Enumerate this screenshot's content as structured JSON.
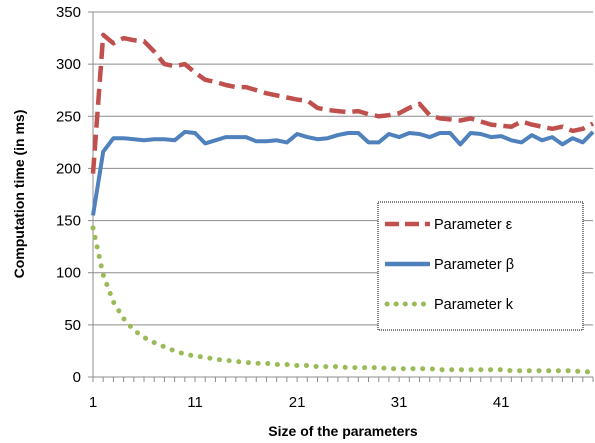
{
  "chart_data": {
    "type": "line",
    "xlabel": "Size of the parameters",
    "ylabel": "Computation time (in ms)",
    "xlim": [
      1,
      50
    ],
    "ylim": [
      0,
      350
    ],
    "x_ticks": [
      1,
      11,
      21,
      31,
      41
    ],
    "y_ticks": [
      0,
      50,
      100,
      150,
      200,
      250,
      300,
      350
    ],
    "grid": "horizontal",
    "legend_position": "right",
    "x": [
      1,
      2,
      3,
      4,
      5,
      6,
      7,
      8,
      9,
      10,
      11,
      12,
      13,
      14,
      15,
      16,
      17,
      18,
      19,
      20,
      21,
      22,
      23,
      24,
      25,
      26,
      27,
      28,
      29,
      30,
      31,
      32,
      33,
      34,
      35,
      36,
      37,
      38,
      39,
      40,
      41,
      42,
      43,
      44,
      45,
      46,
      47,
      48,
      49,
      50
    ],
    "series": [
      {
        "name": "Parameter ε",
        "color": "#C0504D",
        "style": "dashed",
        "values": [
          195,
          328,
          320,
          325,
          323,
          322,
          312,
          300,
          298,
          300,
          292,
          285,
          283,
          280,
          278,
          278,
          275,
          272,
          270,
          268,
          266,
          265,
          258,
          256,
          255,
          254,
          255,
          252,
          250,
          251,
          253,
          258,
          262,
          251,
          248,
          247,
          246,
          248,
          245,
          242,
          241,
          240,
          245,
          242,
          240,
          238,
          240,
          236,
          238,
          243
        ]
      },
      {
        "name": "Parameter β",
        "color": "#4F81BD",
        "style": "solid",
        "values": [
          155,
          216,
          229,
          229,
          228,
          227,
          228,
          228,
          227,
          235,
          234,
          224,
          227,
          230,
          230,
          230,
          226,
          226,
          227,
          225,
          233,
          230,
          228,
          229,
          232,
          234,
          234,
          225,
          225,
          233,
          230,
          234,
          233,
          230,
          234,
          234,
          223,
          234,
          233,
          230,
          231,
          227,
          225,
          232,
          227,
          230,
          223,
          229,
          225,
          235
        ]
      },
      {
        "name": "Parameter k",
        "color": "#9BBB59",
        "style": "dotted",
        "values": [
          143,
          98,
          72,
          56,
          45,
          38,
          33,
          29,
          25,
          22,
          20,
          19,
          17,
          16,
          15,
          14,
          13,
          13,
          12,
          12,
          11,
          11,
          10,
          10,
          10,
          9,
          9,
          9,
          9,
          8,
          8,
          8,
          8,
          8,
          7,
          7,
          7,
          7,
          7,
          7,
          7,
          6,
          6,
          6,
          6,
          6,
          6,
          6,
          5,
          5
        ]
      }
    ]
  }
}
